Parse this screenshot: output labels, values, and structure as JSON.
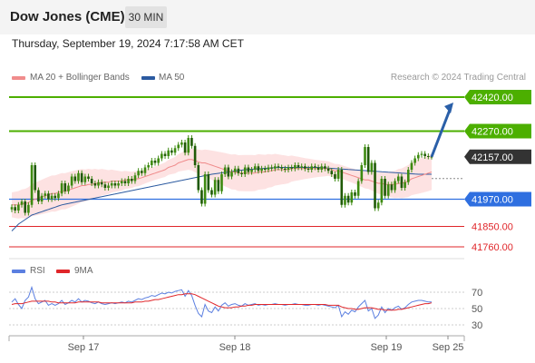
{
  "header": {
    "title": "Dow Jones (CME)",
    "timeframe": "30 MIN",
    "datetime": "Thursday, September 19, 2024 7:17:58 AM CET"
  },
  "legend": {
    "ma20": "MA 20 + Bollinger Bands",
    "ma50": "MA 50",
    "credit": "Research © 2024 Trading Central"
  },
  "rsi_legend": {
    "rsi": "RSI",
    "ma": "9MA"
  },
  "colors": {
    "resistance": "#4caf00",
    "support": "#2f6fe0",
    "minor_support": "#e0262a",
    "ma50": "#2b5aa0",
    "ma20": "#ef8a8a",
    "band": "#fde2e2",
    "rsi": "#5b7fe0",
    "rsi_ma": "#e0262a",
    "candle": "#3d8a10",
    "arrow": "#2a5fa8"
  },
  "chart_data": [
    {
      "type": "candlestick",
      "title": "Dow Jones (CME) 30 MIN",
      "x_ticks": [
        "Sep 17",
        "Sep 18",
        "Sep 19",
        "Sep 25"
      ],
      "ylim": [
        41700,
        42480
      ],
      "last_price": 42157.0,
      "levels": [
        {
          "label": "42420.00",
          "value": 42420,
          "kind": "resistance"
        },
        {
          "label": "42270.00",
          "value": 42270,
          "kind": "resistance"
        },
        {
          "label": "42157.00",
          "value": 42157,
          "kind": "last"
        },
        {
          "label": "41970.00",
          "value": 41970,
          "kind": "support"
        },
        {
          "label": "41850.00",
          "value": 41850,
          "kind": "minor_support"
        },
        {
          "label": "41760.00",
          "value": 41760,
          "kind": "minor_support"
        }
      ],
      "close": [
        41935,
        41920,
        41945,
        41960,
        41910,
        41945,
        42120,
        42010,
        41960,
        41985,
        41995,
        41970,
        41985,
        41975,
        41995,
        42040,
        42005,
        42030,
        42070,
        42050,
        42085,
        42045,
        42070,
        42060,
        42040,
        42030,
        42045,
        42035,
        42020,
        42030,
        42040,
        42030,
        42040,
        42050,
        42040,
        42060,
        42050,
        42075,
        42095,
        42085,
        42110,
        42120,
        42140,
        42130,
        42150,
        42170,
        42160,
        42185,
        42175,
        42195,
        42210,
        42220,
        42175,
        42240,
        42205,
        42120,
        42010,
        41950,
        42080,
        42010,
        41990,
        42055,
        42005,
        42080,
        42110,
        42070,
        42090,
        42105,
        42085,
        42080,
        42110,
        42090,
        42100,
        42115,
        42095,
        42105,
        42100,
        42110,
        42105,
        42115,
        42110,
        42105,
        42100,
        42110,
        42105,
        42120,
        42110,
        42115,
        42105,
        42100,
        42115,
        42110,
        42100,
        42115,
        42105,
        42095,
        42080,
        42060,
        42100,
        41945,
        41985,
        41955,
        42000,
        41985,
        42050,
        42120,
        42200,
        42090,
        42130,
        41930,
        41955,
        42060,
        41985,
        42035,
        42010,
        42050,
        42070,
        42020,
        42045,
        42100,
        42130,
        42150,
        42165,
        42170,
        42160,
        42158,
        42157
      ],
      "ma20": [
        41945,
        41945,
        41945,
        41950,
        41950,
        41955,
        41965,
        41970,
        41975,
        41980,
        41985,
        41990,
        41995,
        41995,
        42000,
        42005,
        42005,
        42010,
        42015,
        42020,
        42025,
        42030,
        42030,
        42035,
        42035,
        42040,
        42040,
        42045,
        42045,
        42045,
        42050,
        42050,
        42050,
        42050,
        42055,
        42055,
        42055,
        42060,
        42060,
        42065,
        42070,
        42075,
        42080,
        42085,
        42090,
        42095,
        42100,
        42110,
        42115,
        42120,
        42130,
        42135,
        42140,
        42145,
        42145,
        42140,
        42135,
        42130,
        42130,
        42125,
        42120,
        42115,
        42110,
        42105,
        42100,
        42095,
        42090,
        42090,
        42085,
        42085,
        42085,
        42085,
        42085,
        42085,
        42090,
        42090,
        42090,
        42095,
        42095,
        42100,
        42100,
        42100,
        42100,
        42100,
        42105,
        42105,
        42105,
        42105,
        42105,
        42105,
        42105,
        42105,
        42105,
        42105,
        42105,
        42105,
        42100,
        42095,
        42095,
        42090,
        42085,
        42080,
        42075,
        42070,
        42065,
        42060,
        42055,
        42055,
        42050,
        42045,
        42040,
        42040,
        42035,
        42035,
        42035,
        42035,
        42040,
        42040,
        42045,
        42050,
        42060,
        42065,
        42070,
        42075,
        42080,
        42085,
        42090
      ],
      "ma50": [
        41830,
        41845,
        41860,
        41870,
        41880,
        41890,
        41900,
        41905,
        41910,
        41915,
        41920,
        41925,
        41930,
        41935,
        41940,
        41945,
        41948,
        41951,
        41954,
        41957,
        41960,
        41963,
        41966,
        41969,
        41972,
        41975,
        41978,
        41981,
        41984,
        41987,
        41990,
        41993,
        41996,
        41999,
        42002,
        42005,
        42008,
        42011,
        42014,
        42017,
        42020,
        42023,
        42026,
        42029,
        42032,
        42035,
        42038,
        42041,
        42044,
        42047,
        42050,
        42053,
        42056,
        42059,
        42062,
        42065,
        42068,
        42071,
        42074,
        42077,
        42080,
        42082,
        42084,
        42086,
        42088,
        42090,
        42092,
        42094,
        42096,
        42098,
        42100,
        42101,
        42102,
        42103,
        42104,
        42105,
        42106,
        42107,
        42108,
        42109,
        42110,
        42110,
        42110,
        42110,
        42110,
        42110,
        42110,
        42110,
        42110,
        42110,
        42110,
        42110,
        42110,
        42109,
        42108,
        42107,
        42106,
        42105,
        42104,
        42103,
        42102,
        42101,
        42100,
        42099,
        42098,
        42097,
        42096,
        42095,
        42094,
        42093,
        42092,
        42091,
        42090,
        42089,
        42088,
        42087,
        42086,
        42085,
        42084,
        42083,
        42082,
        42081,
        42080,
        42080,
        42080,
        42080,
        42080
      ]
    },
    {
      "type": "line",
      "title": "RSI",
      "series_names": [
        "RSI",
        "9MA"
      ],
      "y_ticks": [
        "70",
        "50",
        "30"
      ],
      "ylim": [
        10,
        90
      ],
      "rsi": [
        58,
        62,
        55,
        50,
        60,
        64,
        76,
        62,
        56,
        58,
        60,
        54,
        56,
        54,
        56,
        60,
        55,
        57,
        60,
        58,
        62,
        58,
        60,
        59,
        57,
        56,
        58,
        56,
        55,
        56,
        57,
        56,
        57,
        58,
        57,
        59,
        58,
        60,
        62,
        61,
        63,
        64,
        66,
        65,
        67,
        69,
        68,
        70,
        69,
        71,
        72,
        73,
        65,
        72,
        66,
        54,
        44,
        40,
        55,
        47,
        45,
        52,
        47,
        54,
        57,
        53,
        55,
        56,
        54,
        53,
        56,
        54,
        55,
        56,
        54,
        55,
        54,
        55,
        55,
        56,
        55,
        55,
        54,
        55,
        55,
        56,
        55,
        55,
        54,
        54,
        55,
        55,
        54,
        55,
        54,
        53,
        52,
        51,
        54,
        40,
        46,
        43,
        48,
        46,
        52,
        56,
        60,
        47,
        50,
        38,
        42,
        52,
        45,
        50,
        48,
        51,
        53,
        49,
        51,
        55,
        58,
        59,
        60,
        60,
        59,
        58,
        58
      ],
      "ma": [
        55,
        56,
        56,
        56,
        57,
        58,
        59,
        59,
        59,
        59,
        59,
        59,
        58,
        58,
        57,
        57,
        57,
        57,
        57,
        57,
        58,
        58,
        58,
        58,
        58,
        58,
        58,
        57,
        57,
        57,
        57,
        57,
        57,
        57,
        57,
        57,
        57,
        58,
        58,
        58,
        59,
        59,
        60,
        61,
        61,
        62,
        63,
        64,
        65,
        66,
        67,
        67,
        68,
        68,
        68,
        67,
        65,
        63,
        61,
        59,
        57,
        55,
        53,
        52,
        51,
        51,
        51,
        52,
        52,
        53,
        53,
        54,
        54,
        55,
        55,
        55,
        55,
        55,
        55,
        55,
        55,
        55,
        55,
        55,
        55,
        55,
        55,
        55,
        55,
        55,
        55,
        55,
        55,
        55,
        55,
        54,
        54,
        54,
        54,
        52,
        51,
        50,
        50,
        49,
        49,
        50,
        51,
        51,
        51,
        50,
        49,
        49,
        48,
        48,
        48,
        48,
        49,
        49,
        50,
        51,
        52,
        53,
        54,
        55,
        56,
        56,
        57
      ]
    }
  ]
}
